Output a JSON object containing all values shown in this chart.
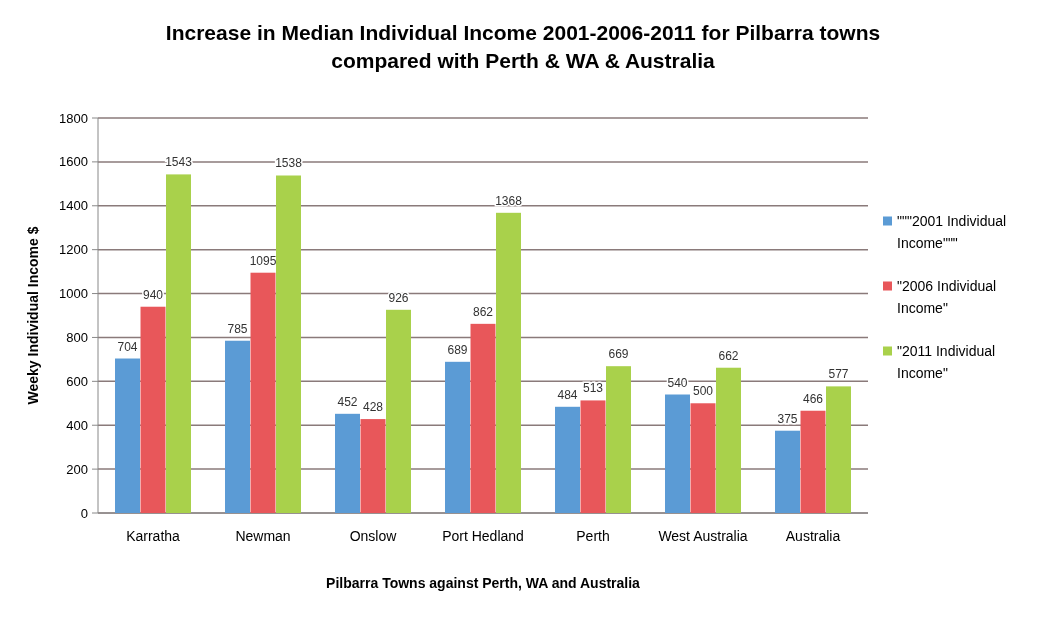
{
  "chart_data": {
    "type": "bar",
    "title": "Increase in Median Individual  Income 2001-2006-2011 for  Pilbarra  towns  compared with  Perth & WA & Australia",
    "xlabel": "Pilbarra Towns  against Perth, WA  and Australia",
    "ylabel": "Weeky Individual Income $",
    "categories": [
      "Karratha",
      "Newman",
      "Onslow",
      "Port Hedland",
      "Perth",
      "West Australia",
      "Australia"
    ],
    "series": [
      {
        "name": "\"\"\"2001 Individual Income\"\"\"",
        "color": "#5b9bd5",
        "values": [
          704,
          785,
          452,
          689,
          484,
          540,
          375
        ]
      },
      {
        "name": "\"2006 Individual Income\"",
        "color": "#e8575a",
        "values": [
          940,
          1095,
          428,
          862,
          513,
          500,
          466
        ]
      },
      {
        "name": "\"2011 Individual Income\"",
        "color": "#a9d14b",
        "values": [
          1543,
          1538,
          926,
          1368,
          669,
          662,
          577
        ]
      }
    ],
    "ylim": [
      0,
      1800
    ],
    "yticks": [
      0,
      200,
      400,
      600,
      800,
      1000,
      1200,
      1400,
      1600,
      1800
    ],
    "grid": "y",
    "legend": "right",
    "data_labels": true
  }
}
